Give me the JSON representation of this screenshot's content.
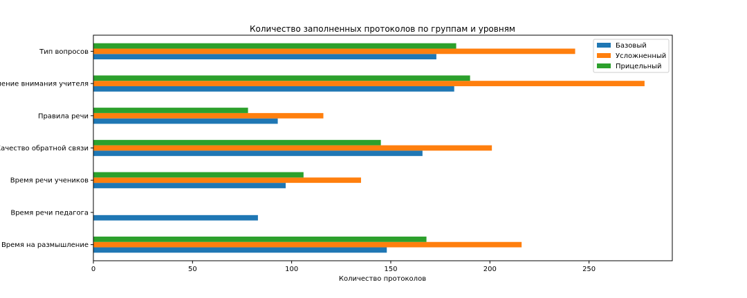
{
  "chart_data": {
    "type": "bar",
    "orientation": "horizontal",
    "title": "Количество заполненных протоколов по группам и уровням",
    "xlabel": "Количество протоколов",
    "ylabel": "",
    "xlim": [
      0,
      292
    ],
    "xticks": [
      0,
      50,
      100,
      150,
      200,
      250
    ],
    "grid": false,
    "legend_position": "top-right",
    "categories": [
      "Время на размышление",
      "Время речи педагога",
      "Время речи учеников",
      "Качество обратной связи",
      "Правила речи",
      "Распределение внимания учителя",
      "Тип вопросов"
    ],
    "series": [
      {
        "name": "Базовый",
        "color": "#1f77b4",
        "values": [
          148,
          83,
          97,
          166,
          93,
          182,
          173
        ]
      },
      {
        "name": "Усложненный",
        "color": "#ff7f0e",
        "values": [
          216,
          null,
          135,
          201,
          116,
          278,
          243
        ]
      },
      {
        "name": "Прицельный",
        "color": "#2ca02c",
        "values": [
          168,
          null,
          106,
          145,
          78,
          190,
          183
        ]
      }
    ]
  }
}
